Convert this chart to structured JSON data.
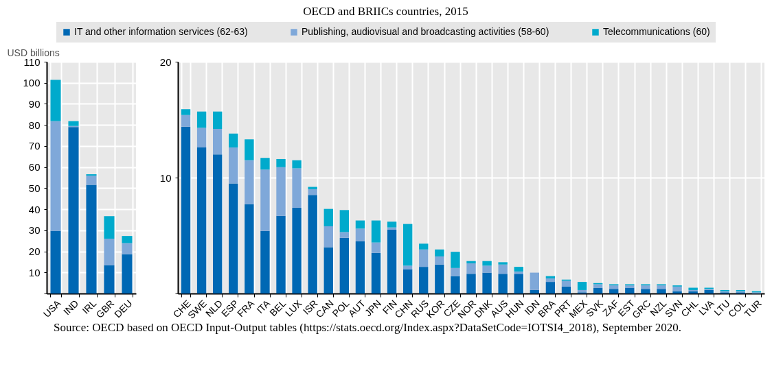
{
  "chart_data": [
    {
      "type": "bar",
      "stacked": true,
      "ylabel": "USD billions",
      "legend": "top",
      "grid": true,
      "annotations": [
        "Source: OECD based on OECD Input-Output tables (https://stats.oecd.org/Index.aspx?DataSetCode=IOTSI4_2018), September 2020."
      ],
      "categories": [
        "USA",
        "IND",
        "IRL",
        "GBR",
        "DEU"
      ],
      "ylim": [
        0,
        110
      ],
      "yticks": [
        {
          "value": 0,
          "label": null
        },
        10,
        20,
        30,
        40,
        50,
        60,
        70,
        80,
        90,
        100,
        110
      ],
      "series": [
        {
          "name": "IT and other information services (62-63)",
          "color": "#0068b4",
          "values": [
            29.8,
            79,
            51.6,
            13.4,
            18.6
          ]
        },
        {
          "name": "Publishing, audiovisual and broadcasting activities (58-60)",
          "color": "#7fa8d9",
          "values": [
            52,
            0.5,
            4.3,
            12.6,
            5.3
          ]
        },
        {
          "name": "Telecommunications (60)",
          "color": "#00aacc",
          "values": [
            19.6,
            2.3,
            0.7,
            10.7,
            3.4
          ]
        }
      ]
    },
    {
      "type": "bar",
      "stacked": true,
      "title": "OECD and BRIICs countries, 2015",
      "legend": "top",
      "grid": true,
      "categories": [
        "CHE",
        "SWE",
        "NLD",
        "ESP",
        "FRA",
        "ITA",
        "BEL",
        "LUX",
        "ISR",
        "CAN",
        "POL",
        "AUT",
        "JPN",
        "FIN",
        "CHN",
        "RUS",
        "KOR",
        "CZE",
        "NOR",
        "DNK",
        "AUS",
        "HUN",
        "IDN",
        "BRA",
        "PRT",
        "MEX",
        "SVK",
        "ZAF",
        "EST",
        "GRC",
        "NZL",
        "SVN",
        "CHL",
        "LVA",
        "LTU",
        "COL",
        "TUR"
      ],
      "ylim": [
        0,
        20
      ],
      "yticks": [
        {
          "value": 0,
          "label": null
        },
        10,
        20
      ],
      "series": [
        {
          "name": "IT and other information services (62-63)",
          "color": "#0068b4",
          "values": [
            14.4,
            12.6,
            12.0,
            9.5,
            7.7,
            5.4,
            6.7,
            7.4,
            8.5,
            4.0,
            4.8,
            4.5,
            3.5,
            5.5,
            2.1,
            2.3,
            2.5,
            1.5,
            1.7,
            1.8,
            1.7,
            1.7,
            0.3,
            1.0,
            0.6,
            0.1,
            0.5,
            0.4,
            0.5,
            0.4,
            0.4,
            0.2,
            0.2,
            0.3,
            0.1,
            0.1,
            0.0
          ]
        },
        {
          "name": "Publishing, audiovisual and broadcasting activities (58-60)",
          "color": "#7fa8d9",
          "values": [
            1.0,
            1.7,
            2.2,
            3.1,
            3.8,
            5.3,
            4.2,
            3.4,
            0.5,
            1.8,
            0.5,
            1.1,
            0.9,
            0.2,
            0.3,
            1.5,
            0.7,
            0.7,
            0.9,
            0.6,
            0.8,
            0.2,
            1.5,
            0.3,
            0.5,
            0.2,
            0.3,
            0.3,
            0.2,
            0.3,
            0.3,
            0.4,
            0.1,
            0.1,
            0.1,
            0.1,
            0.1
          ]
        },
        {
          "name": "Telecommunications (60)",
          "color": "#00aacc",
          "values": [
            0.5,
            1.4,
            1.5,
            1.2,
            1.8,
            1.0,
            0.7,
            0.7,
            0.2,
            1.5,
            1.9,
            0.7,
            1.9,
            0.5,
            3.6,
            0.5,
            0.6,
            1.4,
            0.2,
            0.4,
            0.2,
            0.4,
            0.0,
            0.2,
            0.1,
            0.7,
            0.1,
            0.1,
            0.1,
            0.1,
            0.1,
            0.1,
            0.2,
            0.1,
            0.1,
            0.1,
            0.1
          ]
        }
      ]
    }
  ]
}
